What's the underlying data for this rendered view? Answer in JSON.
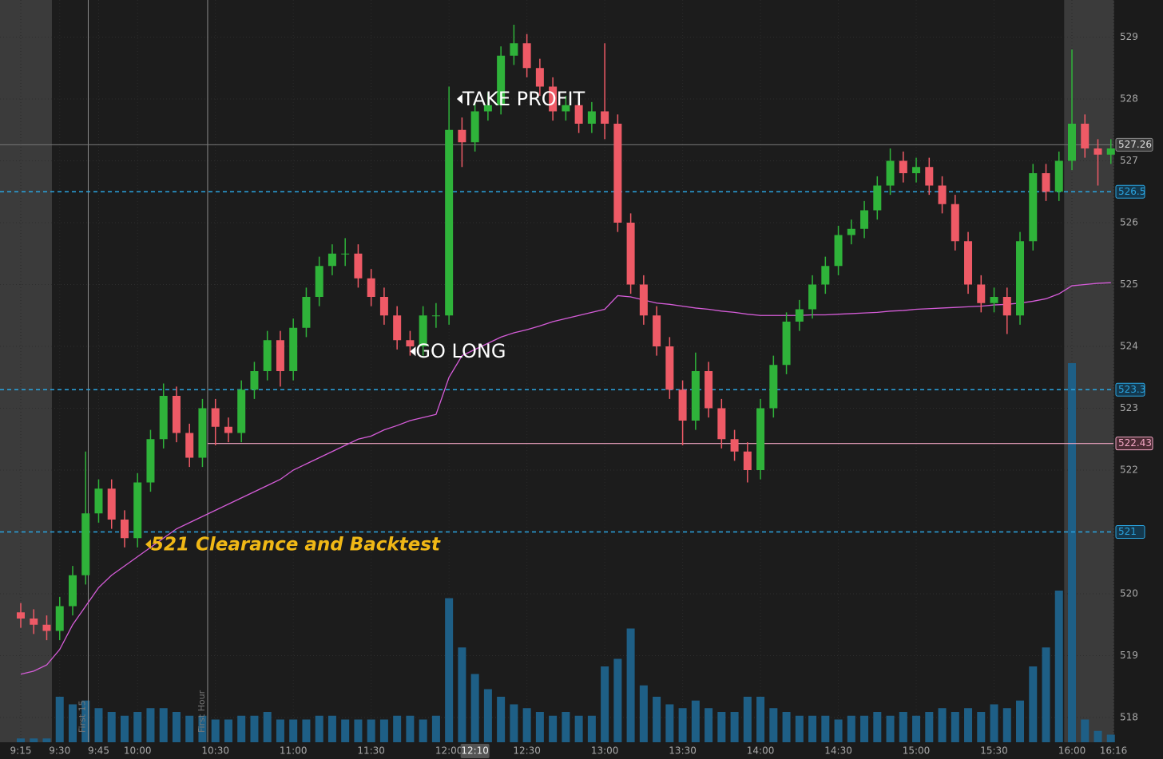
{
  "chart_data": {
    "type": "candlestick",
    "x": [
      "9:15",
      "9:20",
      "9:25",
      "9:30",
      "9:35",
      "9:40",
      "9:45",
      "9:50",
      "9:55",
      "10:00",
      "10:05",
      "10:10",
      "10:15",
      "10:20",
      "10:25",
      "10:30",
      "10:35",
      "10:40",
      "10:45",
      "10:50",
      "10:55",
      "11:00",
      "11:05",
      "11:10",
      "11:15",
      "11:20",
      "11:25",
      "11:30",
      "11:35",
      "11:40",
      "11:45",
      "11:50",
      "11:55",
      "12:00",
      "12:05",
      "12:10",
      "12:15",
      "12:20",
      "12:25",
      "12:30",
      "12:35",
      "12:40",
      "12:45",
      "12:50",
      "12:55",
      "13:00",
      "13:05",
      "13:10",
      "13:15",
      "13:20",
      "13:25",
      "13:30",
      "13:35",
      "13:40",
      "13:45",
      "13:50",
      "13:55",
      "14:00",
      "14:05",
      "14:10",
      "14:15",
      "14:20",
      "14:25",
      "14:30",
      "14:35",
      "14:40",
      "14:45",
      "14:50",
      "14:55",
      "15:00",
      "15:05",
      "15:10",
      "15:15",
      "15:20",
      "15:25",
      "15:30",
      "15:35",
      "15:40",
      "15:45",
      "15:50",
      "15:55",
      "16:00",
      "16:05",
      "16:10",
      "16:15"
    ],
    "open": [
      519.7,
      519.6,
      519.5,
      519.4,
      519.8,
      520.3,
      521.3,
      521.7,
      521.2,
      520.9,
      521.8,
      522.5,
      523.2,
      522.6,
      522.2,
      523.0,
      522.7,
      522.6,
      523.3,
      523.6,
      524.1,
      523.6,
      524.3,
      524.8,
      525.3,
      525.5,
      525.5,
      525.1,
      524.8,
      524.5,
      524.1,
      524.0,
      524.5,
      524.5,
      527.5,
      527.3,
      527.8,
      527.9,
      528.7,
      528.9,
      528.5,
      528.2,
      527.8,
      527.9,
      527.6,
      527.8,
      527.6,
      526.0,
      525.0,
      524.5,
      524.0,
      523.3,
      522.8,
      523.6,
      523.0,
      522.5,
      522.3,
      522.0,
      523.0,
      523.7,
      524.4,
      524.6,
      525.0,
      525.3,
      525.8,
      525.9,
      526.2,
      526.6,
      527.0,
      526.8,
      526.9,
      526.6,
      526.3,
      525.7,
      525.0,
      524.7,
      524.8,
      524.5,
      525.7,
      526.8,
      526.5,
      527.0,
      527.6,
      527.2,
      527.1
    ],
    "high": [
      519.85,
      519.75,
      519.65,
      519.95,
      520.45,
      522.3,
      521.85,
      521.85,
      521.35,
      521.95,
      522.65,
      523.4,
      523.35,
      522.75,
      523.15,
      523.15,
      522.85,
      523.45,
      523.75,
      524.25,
      524.25,
      524.45,
      524.95,
      525.45,
      525.65,
      525.75,
      525.65,
      525.25,
      524.95,
      524.65,
      524.25,
      524.65,
      524.7,
      528.2,
      527.7,
      527.95,
      528.1,
      528.85,
      529.2,
      529.05,
      528.65,
      528.35,
      528.05,
      528.05,
      527.95,
      528.9,
      527.75,
      526.15,
      525.15,
      524.65,
      524.15,
      523.45,
      523.9,
      523.75,
      523.15,
      522.65,
      522.45,
      523.15,
      523.85,
      524.55,
      524.75,
      525.15,
      525.45,
      525.95,
      526.05,
      526.35,
      526.75,
      527.2,
      527.15,
      527.05,
      527.05,
      526.75,
      526.45,
      525.85,
      525.15,
      524.95,
      524.95,
      525.85,
      526.95,
      526.95,
      527.15,
      528.8,
      527.75,
      527.35,
      527.35
    ],
    "low": [
      519.45,
      519.35,
      519.25,
      519.25,
      519.65,
      520.15,
      521.15,
      521.05,
      520.75,
      520.75,
      521.65,
      522.35,
      522.45,
      522.05,
      522.05,
      522.4,
      522.45,
      522.45,
      523.15,
      523.45,
      523.35,
      523.45,
      524.15,
      524.65,
      525.15,
      525.3,
      524.95,
      524.65,
      524.35,
      523.95,
      523.85,
      523.85,
      524.3,
      524.35,
      526.9,
      527.15,
      527.65,
      527.75,
      528.55,
      528.35,
      528.05,
      527.65,
      527.65,
      527.45,
      527.45,
      527.35,
      525.85,
      524.85,
      524.35,
      523.85,
      523.15,
      522.4,
      522.65,
      522.85,
      522.35,
      522.15,
      521.8,
      521.85,
      522.85,
      523.55,
      524.25,
      524.45,
      524.85,
      525.15,
      525.65,
      525.75,
      526.05,
      526.45,
      526.65,
      526.65,
      526.45,
      526.15,
      525.55,
      524.85,
      524.55,
      524.55,
      524.2,
      524.35,
      525.55,
      526.35,
      526.35,
      526.85,
      527.05,
      526.6,
      526.95
    ],
    "close": [
      519.6,
      519.5,
      519.4,
      519.8,
      520.3,
      521.3,
      521.7,
      521.2,
      520.9,
      521.8,
      522.5,
      523.2,
      522.6,
      522.2,
      523.0,
      522.7,
      522.6,
      523.3,
      523.6,
      524.1,
      523.6,
      524.3,
      524.8,
      525.3,
      525.5,
      525.5,
      525.1,
      524.8,
      524.5,
      524.1,
      524.0,
      524.5,
      524.5,
      527.5,
      527.3,
      527.8,
      527.9,
      528.7,
      528.9,
      528.5,
      528.2,
      527.8,
      527.9,
      527.6,
      527.8,
      527.6,
      526.0,
      525.0,
      524.5,
      524.0,
      523.3,
      522.8,
      523.6,
      523.0,
      522.5,
      522.3,
      522.0,
      523.0,
      523.7,
      524.4,
      524.6,
      525.0,
      525.3,
      525.8,
      525.9,
      526.2,
      526.6,
      527.0,
      526.8,
      526.9,
      526.6,
      526.3,
      525.7,
      525.0,
      524.7,
      524.8,
      524.5,
      525.7,
      526.8,
      526.5,
      527.0,
      527.6,
      527.2,
      527.1,
      527.2
    ],
    "vwap": [
      518.7,
      518.75,
      518.85,
      519.1,
      519.5,
      519.8,
      520.1,
      520.3,
      520.45,
      520.6,
      520.75,
      520.9,
      521.05,
      521.15,
      521.25,
      521.35,
      521.45,
      521.55,
      521.65,
      521.75,
      521.85,
      522.0,
      522.1,
      522.2,
      522.3,
      522.4,
      522.5,
      522.55,
      522.65,
      522.72,
      522.8,
      522.85,
      522.9,
      523.5,
      523.85,
      523.95,
      524.05,
      524.15,
      524.22,
      524.27,
      524.33,
      524.4,
      524.45,
      524.5,
      524.55,
      524.6,
      524.82,
      524.8,
      524.75,
      524.7,
      524.68,
      524.65,
      524.62,
      524.6,
      524.57,
      524.55,
      524.52,
      524.5,
      524.5,
      524.5,
      524.5,
      524.51,
      524.51,
      524.52,
      524.53,
      524.54,
      524.55,
      524.57,
      524.58,
      524.6,
      524.61,
      524.62,
      524.63,
      524.64,
      524.65,
      524.67,
      524.68,
      524.7,
      524.73,
      524.77,
      524.85,
      524.98,
      525.0,
      525.02,
      525.03
    ],
    "volume": [
      1,
      1,
      1,
      12,
      10,
      11,
      9,
      8,
      7,
      8,
      9,
      9,
      8,
      7,
      7,
      6,
      6,
      7,
      7,
      8,
      6,
      6,
      6,
      7,
      7,
      6,
      6,
      6,
      6,
      7,
      7,
      6,
      7,
      38,
      25,
      18,
      14,
      12,
      10,
      9,
      8,
      7,
      8,
      7,
      7,
      20,
      22,
      30,
      15,
      12,
      10,
      9,
      11,
      9,
      8,
      8,
      12,
      12,
      9,
      8,
      7,
      7,
      7,
      6,
      7,
      7,
      8,
      7,
      8,
      7,
      8,
      9,
      8,
      9,
      8,
      10,
      9,
      11,
      20,
      25,
      40,
      100,
      6,
      3,
      2
    ],
    "volume_lim": [
      0,
      100
    ],
    "up_color": "#2fb33a",
    "down_color": "#ee5a66",
    "vwap_color": "#d55cd8",
    "volume_color": "#1e5f86",
    "xlim": [
      "9:07",
      "16:16"
    ],
    "xticks": [
      "9:15",
      "9:30",
      "9:45",
      "10:00",
      "10:30",
      "11:00",
      "11:30",
      "12:00",
      "12:30",
      "13:00",
      "13:30",
      "14:00",
      "14:30",
      "15:00",
      "15:30",
      "16:00",
      "16:16"
    ],
    "ylim": [
      517.6,
      529.6
    ],
    "yticks": [
      518,
      519,
      520,
      521,
      522,
      523,
      524,
      525,
      526,
      527,
      528,
      529
    ],
    "grid": true,
    "extended_hours": [
      [
        "9:07",
        "9:27"
      ],
      [
        "15:57",
        "16:16"
      ]
    ],
    "levels": [
      526.5,
      523.3,
      521
    ],
    "level_color": "#2aa4e0",
    "support": {
      "value": 522.43,
      "from": "10:27",
      "color": "#f2a6c4"
    },
    "crosshair": {
      "time": "12:10",
      "price": 527.26
    },
    "markers": [
      {
        "time": "9:41",
        "label": "First 15"
      },
      {
        "time": "10:27",
        "label": "First Hour"
      }
    ],
    "annotations": [
      {
        "text": "TAKE PROFIT",
        "time": "12:03",
        "price": 528.0
      },
      {
        "text": "GO LONG",
        "time": "11:45",
        "price": 523.92
      },
      {
        "text": "521 Clearance and Backtest",
        "time": "10:03",
        "price": 520.8
      }
    ]
  }
}
